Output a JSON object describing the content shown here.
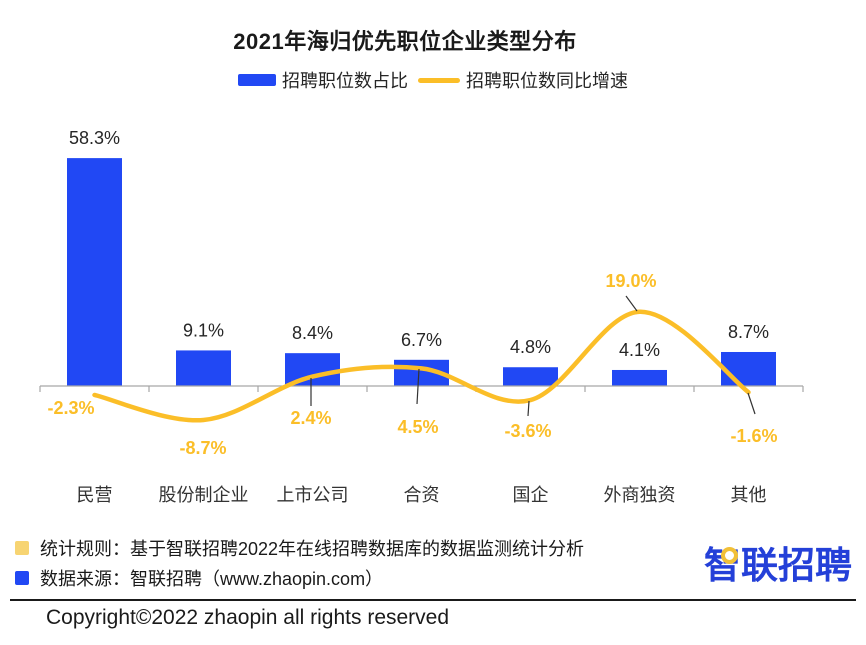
{
  "title": "2021年海归优先职位企业类型分布",
  "legend": {
    "bar_label": "招聘职位数占比",
    "line_label": "招聘职位数同比增速"
  },
  "colors": {
    "bar_blue": "#2148F4",
    "line_yellow": "#FBBE28",
    "bar_value_text": "#262626",
    "category_text": "#333333",
    "axis_gray": "#A6A6A6",
    "leader_line": "#333333",
    "note_yellow": "#F7D472",
    "logo_blue": "#2440D8"
  },
  "chart_data": {
    "type": "bar+line",
    "categories": [
      "民营",
      "股份制企业",
      "上市公司",
      "合资",
      "国企",
      "外商独资",
      "其他"
    ],
    "series": [
      {
        "name": "招聘职位数占比",
        "type": "bar",
        "unit": "%",
        "values": [
          58.3,
          9.1,
          8.4,
          6.7,
          4.8,
          4.1,
          8.7
        ],
        "labels": [
          "58.3%",
          "9.1%",
          "8.4%",
          "6.7%",
          "4.8%",
          "4.1%",
          "8.7%"
        ]
      },
      {
        "name": "招聘职位数同比增速",
        "type": "line",
        "unit": "%",
        "values": [
          -2.3,
          -8.7,
          2.4,
          4.5,
          -3.6,
          19.0,
          -1.6
        ],
        "labels": [
          "-2.3%",
          "-8.7%",
          "2.4%",
          "4.5%",
          "-3.6%",
          "19.0%",
          "-1.6%"
        ]
      }
    ],
    "baseline": 0,
    "grid": false,
    "legend_position": "top",
    "value_labels_shown": true
  },
  "footnotes": [
    {
      "bullet": "yellow",
      "text": "统计规则：基于智联招聘2022年在线招聘数据库的数据监测统计分析"
    },
    {
      "bullet": "blue",
      "text": "数据来源：智联招聘（www.zhaopin.com）"
    }
  ],
  "logo_text": "智联招聘",
  "copyright": "Copyright©2022 zhaopin all rights reserved"
}
